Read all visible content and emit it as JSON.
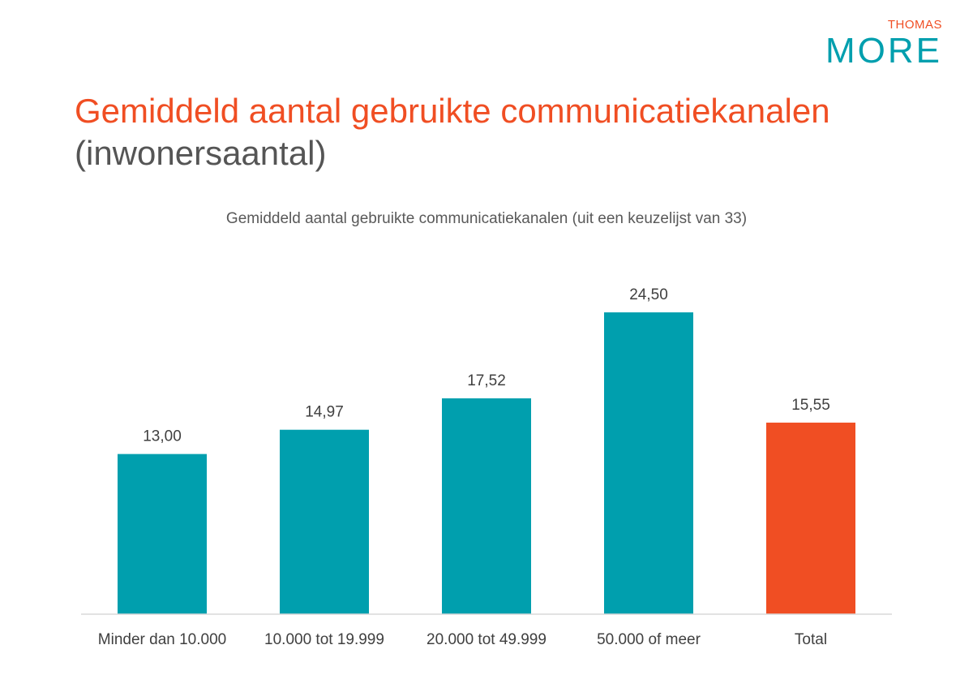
{
  "header": {
    "title": "Gemiddeld aantal gebruikte communicatiekanalen",
    "subtitle": "(inwonersaantal)"
  },
  "logo": {
    "top": "THOMAS",
    "main": "MORE",
    "colors": {
      "top": "#f04e23",
      "main": "#009fae"
    }
  },
  "chart_data": {
    "type": "bar",
    "title": "Gemiddeld aantal gebruikte communicatiekanalen (uit een keuzelijst van 33)",
    "categories": [
      "Minder dan 10.000",
      "10.000 tot 19.999",
      "20.000 tot 49.999",
      "50.000 of meer",
      "Total"
    ],
    "values": [
      13.0,
      14.97,
      17.52,
      24.5,
      15.55
    ],
    "value_labels": [
      "13,00",
      "14,97",
      "17,52",
      "24,50",
      "15,55"
    ],
    "colors": [
      "#009fae",
      "#009fae",
      "#009fae",
      "#009fae",
      "#f04e23"
    ],
    "xlabel": "",
    "ylabel": "",
    "ylim": [
      0,
      25
    ],
    "grid": false,
    "legend": "none"
  }
}
